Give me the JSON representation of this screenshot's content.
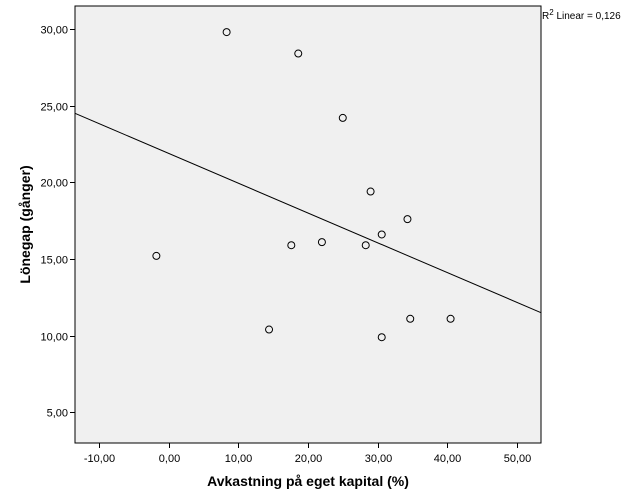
{
  "chart_data": {
    "type": "scatter",
    "xlabel": "Avkastning på eget kapital (%)",
    "ylabel": "Lönegap (gånger)",
    "xlim": [
      -13.5,
      53.5
    ],
    "ylim": [
      3,
      31.5
    ],
    "x_ticks": [
      -10,
      0,
      10,
      20,
      30,
      40,
      50
    ],
    "x_tick_labels": [
      "-10,00",
      "0,00",
      "10,00",
      "20,00",
      "30,00",
      "40,00",
      "50,00"
    ],
    "y_ticks": [
      5,
      10,
      15,
      20,
      25,
      30
    ],
    "y_tick_labels": [
      "5,00",
      "10,00",
      "15,00",
      "20,00",
      "25,00",
      "30,00"
    ],
    "points": [
      {
        "x": 8.3,
        "y": 29.8
      },
      {
        "x": 18.6,
        "y": 28.4
      },
      {
        "x": 25.0,
        "y": 24.2
      },
      {
        "x": 29.0,
        "y": 19.4
      },
      {
        "x": 34.3,
        "y": 17.6
      },
      {
        "x": 30.6,
        "y": 16.6
      },
      {
        "x": 22.0,
        "y": 16.1
      },
      {
        "x": 17.6,
        "y": 15.9
      },
      {
        "x": 28.3,
        "y": 15.9
      },
      {
        "x": -1.8,
        "y": 15.2
      },
      {
        "x": 34.7,
        "y": 11.1
      },
      {
        "x": 40.5,
        "y": 11.1
      },
      {
        "x": 14.4,
        "y": 10.4
      },
      {
        "x": 30.6,
        "y": 9.9
      }
    ],
    "fit_line": {
      "x": [
        -13.5,
        53.5
      ],
      "y": [
        24.5,
        11.5
      ]
    },
    "r2_label_prefix": "R",
    "r2_label_sup": "2",
    "r2_label_text": " Linear = 0,126",
    "grid": false,
    "plot_background": "#f0f0f0"
  }
}
